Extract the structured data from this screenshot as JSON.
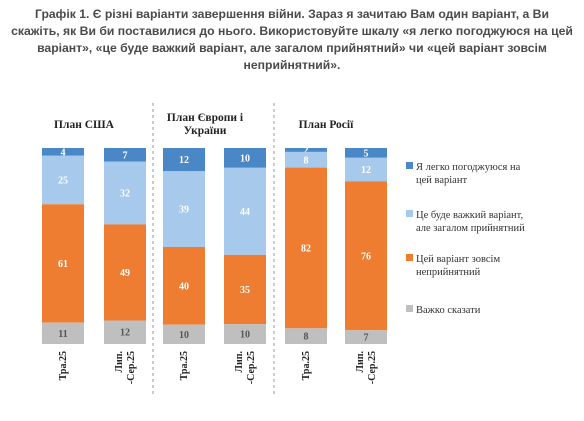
{
  "title_lines": [
    "Графік 1. Є різні варіанти завершення війни. Зараз я зачитаю Вам один варіант, а Ви",
    "скажіть, як Ви би поставилися до нього. Використовуйте шкалу «я легко погоджуюся на цей",
    "варіант», «це буде важкий варіант, але загалом прийнятний» чи «цей варіант зовсім",
    "неприйнятний»."
  ],
  "chart_data": {
    "type": "bar",
    "stacked": true,
    "grouped": true,
    "ylim": [
      0,
      100
    ],
    "groups": [
      {
        "name": "План США",
        "bars": [
          {
            "label": [
              "Тра.25"
            ],
            "values": [
              4,
              25,
              61,
              11
            ]
          },
          {
            "label": [
              "Лип.",
              "-Сер.25"
            ],
            "values": [
              7,
              32,
              49,
              12
            ]
          }
        ]
      },
      {
        "name": "План Європи і України",
        "name_lines": [
          "План Європи і",
          "України"
        ],
        "bars": [
          {
            "label": [
              "Тра.25"
            ],
            "values": [
              12,
              39,
              40,
              10
            ]
          },
          {
            "label": [
              "Лип.",
              "-Сер.25"
            ],
            "values": [
              10,
              44,
              35,
              10
            ]
          }
        ]
      },
      {
        "name": "План Росії",
        "bars": [
          {
            "label": [
              "Тра.25"
            ],
            "values": [
              2,
              8,
              82,
              8
            ]
          },
          {
            "label": [
              "Лип.",
              "-Сер.25"
            ],
            "values": [
              5,
              12,
              76,
              7
            ]
          }
        ]
      }
    ],
    "series": [
      {
        "name": "Я легко погоджуюся на цей варіант",
        "name_lines": [
          "Я легко погоджуюся на",
          "цей варіант"
        ],
        "color": "#4a87c7",
        "label_color": "#ffffff"
      },
      {
        "name": "Це буде важкий варіант, але загалом прийнятний",
        "name_lines": [
          "Це буде важкий варіант,",
          "але загалом прийнятний"
        ],
        "color": "#a7c9ec",
        "label_color": "#ffffff"
      },
      {
        "name": "Цей варіант зовсім неприйнятний",
        "name_lines": [
          "Цей варіант зовсім",
          "неприйнятний"
        ],
        "color": "#ee7d31",
        "label_color": "#ffffff"
      },
      {
        "name": "Важко сказати",
        "name_lines": [
          "Важко сказати"
        ],
        "color": "#bfbfbf",
        "label_color": "#555555"
      }
    ],
    "legend_position": "right",
    "grid": false
  }
}
